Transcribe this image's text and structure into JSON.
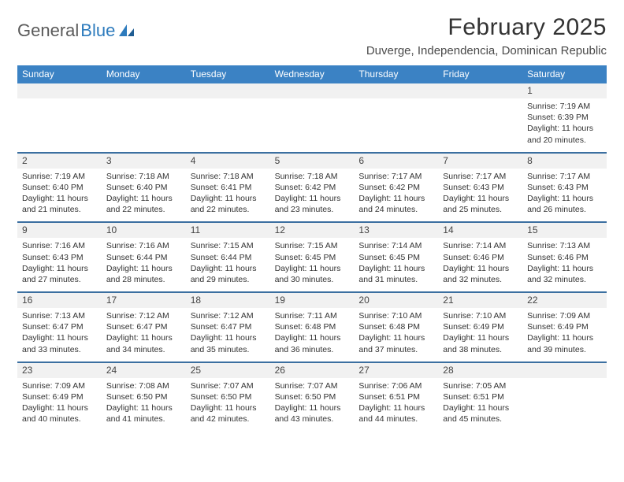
{
  "brand": {
    "word1": "General",
    "word2": "Blue"
  },
  "title": "February 2025",
  "location": "Duverge, Independencia, Dominican Republic",
  "colors": {
    "header_bg": "#3b82c4",
    "row_divider": "#3b6fa0",
    "daynum_bg": "#f1f1f1",
    "text": "#333333",
    "brand_gray": "#5a5a5a",
    "brand_blue": "#2d7bbd"
  },
  "weekdays": [
    "Sunday",
    "Monday",
    "Tuesday",
    "Wednesday",
    "Thursday",
    "Friday",
    "Saturday"
  ],
  "weeks": [
    [
      null,
      null,
      null,
      null,
      null,
      null,
      {
        "n": "1",
        "sr": "7:19 AM",
        "ss": "6:39 PM",
        "dl": "11 hours and 20 minutes."
      }
    ],
    [
      {
        "n": "2",
        "sr": "7:19 AM",
        "ss": "6:40 PM",
        "dl": "11 hours and 21 minutes."
      },
      {
        "n": "3",
        "sr": "7:18 AM",
        "ss": "6:40 PM",
        "dl": "11 hours and 22 minutes."
      },
      {
        "n": "4",
        "sr": "7:18 AM",
        "ss": "6:41 PM",
        "dl": "11 hours and 22 minutes."
      },
      {
        "n": "5",
        "sr": "7:18 AM",
        "ss": "6:42 PM",
        "dl": "11 hours and 23 minutes."
      },
      {
        "n": "6",
        "sr": "7:17 AM",
        "ss": "6:42 PM",
        "dl": "11 hours and 24 minutes."
      },
      {
        "n": "7",
        "sr": "7:17 AM",
        "ss": "6:43 PM",
        "dl": "11 hours and 25 minutes."
      },
      {
        "n": "8",
        "sr": "7:17 AM",
        "ss": "6:43 PM",
        "dl": "11 hours and 26 minutes."
      }
    ],
    [
      {
        "n": "9",
        "sr": "7:16 AM",
        "ss": "6:43 PM",
        "dl": "11 hours and 27 minutes."
      },
      {
        "n": "10",
        "sr": "7:16 AM",
        "ss": "6:44 PM",
        "dl": "11 hours and 28 minutes."
      },
      {
        "n": "11",
        "sr": "7:15 AM",
        "ss": "6:44 PM",
        "dl": "11 hours and 29 minutes."
      },
      {
        "n": "12",
        "sr": "7:15 AM",
        "ss": "6:45 PM",
        "dl": "11 hours and 30 minutes."
      },
      {
        "n": "13",
        "sr": "7:14 AM",
        "ss": "6:45 PM",
        "dl": "11 hours and 31 minutes."
      },
      {
        "n": "14",
        "sr": "7:14 AM",
        "ss": "6:46 PM",
        "dl": "11 hours and 32 minutes."
      },
      {
        "n": "15",
        "sr": "7:13 AM",
        "ss": "6:46 PM",
        "dl": "11 hours and 32 minutes."
      }
    ],
    [
      {
        "n": "16",
        "sr": "7:13 AM",
        "ss": "6:47 PM",
        "dl": "11 hours and 33 minutes."
      },
      {
        "n": "17",
        "sr": "7:12 AM",
        "ss": "6:47 PM",
        "dl": "11 hours and 34 minutes."
      },
      {
        "n": "18",
        "sr": "7:12 AM",
        "ss": "6:47 PM",
        "dl": "11 hours and 35 minutes."
      },
      {
        "n": "19",
        "sr": "7:11 AM",
        "ss": "6:48 PM",
        "dl": "11 hours and 36 minutes."
      },
      {
        "n": "20",
        "sr": "7:10 AM",
        "ss": "6:48 PM",
        "dl": "11 hours and 37 minutes."
      },
      {
        "n": "21",
        "sr": "7:10 AM",
        "ss": "6:49 PM",
        "dl": "11 hours and 38 minutes."
      },
      {
        "n": "22",
        "sr": "7:09 AM",
        "ss": "6:49 PM",
        "dl": "11 hours and 39 minutes."
      }
    ],
    [
      {
        "n": "23",
        "sr": "7:09 AM",
        "ss": "6:49 PM",
        "dl": "11 hours and 40 minutes."
      },
      {
        "n": "24",
        "sr": "7:08 AM",
        "ss": "6:50 PM",
        "dl": "11 hours and 41 minutes."
      },
      {
        "n": "25",
        "sr": "7:07 AM",
        "ss": "6:50 PM",
        "dl": "11 hours and 42 minutes."
      },
      {
        "n": "26",
        "sr": "7:07 AM",
        "ss": "6:50 PM",
        "dl": "11 hours and 43 minutes."
      },
      {
        "n": "27",
        "sr": "7:06 AM",
        "ss": "6:51 PM",
        "dl": "11 hours and 44 minutes."
      },
      {
        "n": "28",
        "sr": "7:05 AM",
        "ss": "6:51 PM",
        "dl": "11 hours and 45 minutes."
      },
      null
    ]
  ],
  "labels": {
    "sunrise": "Sunrise:",
    "sunset": "Sunset:",
    "daylight": "Daylight:"
  }
}
